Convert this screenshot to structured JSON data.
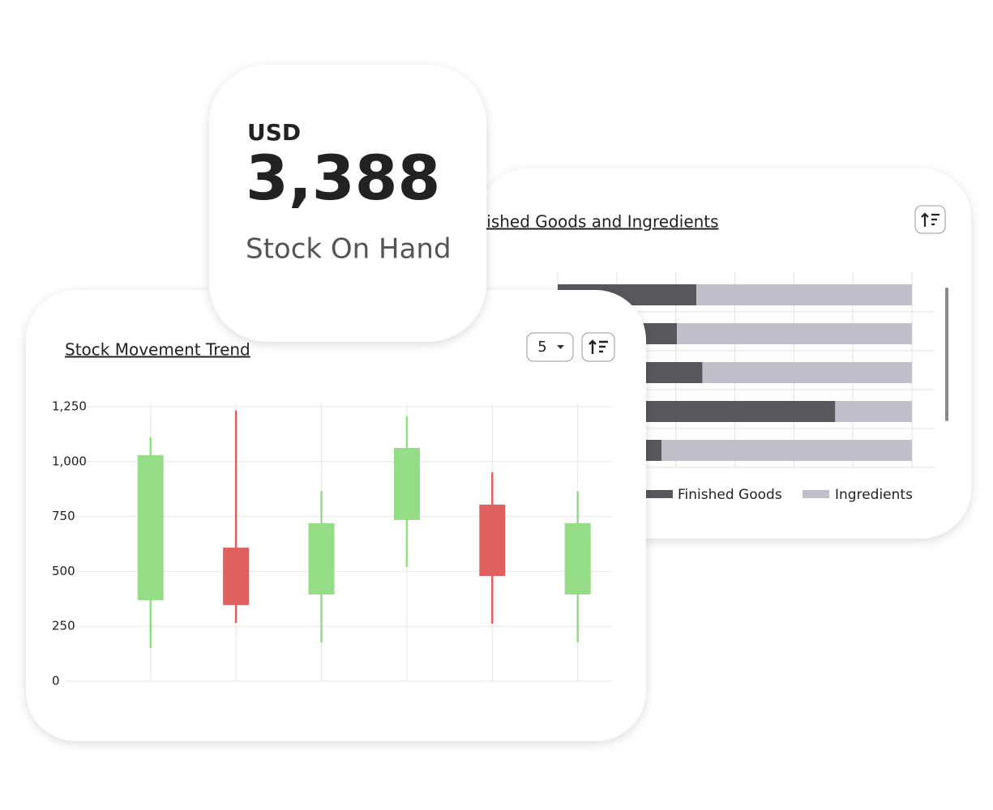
{
  "kpi": {
    "currency": "USD",
    "value": "3,388",
    "label": "Stock On Hand"
  },
  "controls": {
    "page_size": "5"
  },
  "chart_data": [
    {
      "type": "barh",
      "stacked": true,
      "title": "Finished Goods and Ingredients",
      "categories": [
        null,
        null,
        null,
        null,
        null
      ],
      "series": [
        {
          "name": "Finished Goods",
          "color": "#58575c",
          "values": [
            2.35,
            2.02,
            2.45,
            4.7,
            1.76
          ]
        },
        {
          "name": "Ingredients",
          "color": "#c0bfc9",
          "values": [
            3.65,
            3.98,
            3.55,
            1.3,
            4.24
          ]
        }
      ],
      "xlim": [
        0,
        6
      ],
      "xticks": [
        0,
        1,
        2,
        3,
        4,
        5,
        6
      ],
      "grid": true,
      "legend": "bottom"
    },
    {
      "type": "candlestick",
      "title": "Stock Movement Trend",
      "categories": [
        null,
        null,
        null,
        null,
        null,
        null
      ],
      "open": [
        369,
        608,
        395,
        734,
        804,
        395
      ],
      "high": [
        1110,
        1232,
        866,
        1206,
        951,
        866
      ],
      "low": [
        151,
        265,
        177,
        520,
        262,
        177
      ],
      "close": [
        1029,
        347,
        719,
        1062,
        479,
        719
      ],
      "up_color": "#94dc85",
      "down_color": "#e06060",
      "ylim": [
        0,
        1250
      ],
      "yticks": [
        0,
        250,
        500,
        750,
        {
          "value": 1000,
          "label": "1,000"
        },
        {
          "value": 1250,
          "label": "1,250"
        }
      ],
      "grid": true
    }
  ]
}
